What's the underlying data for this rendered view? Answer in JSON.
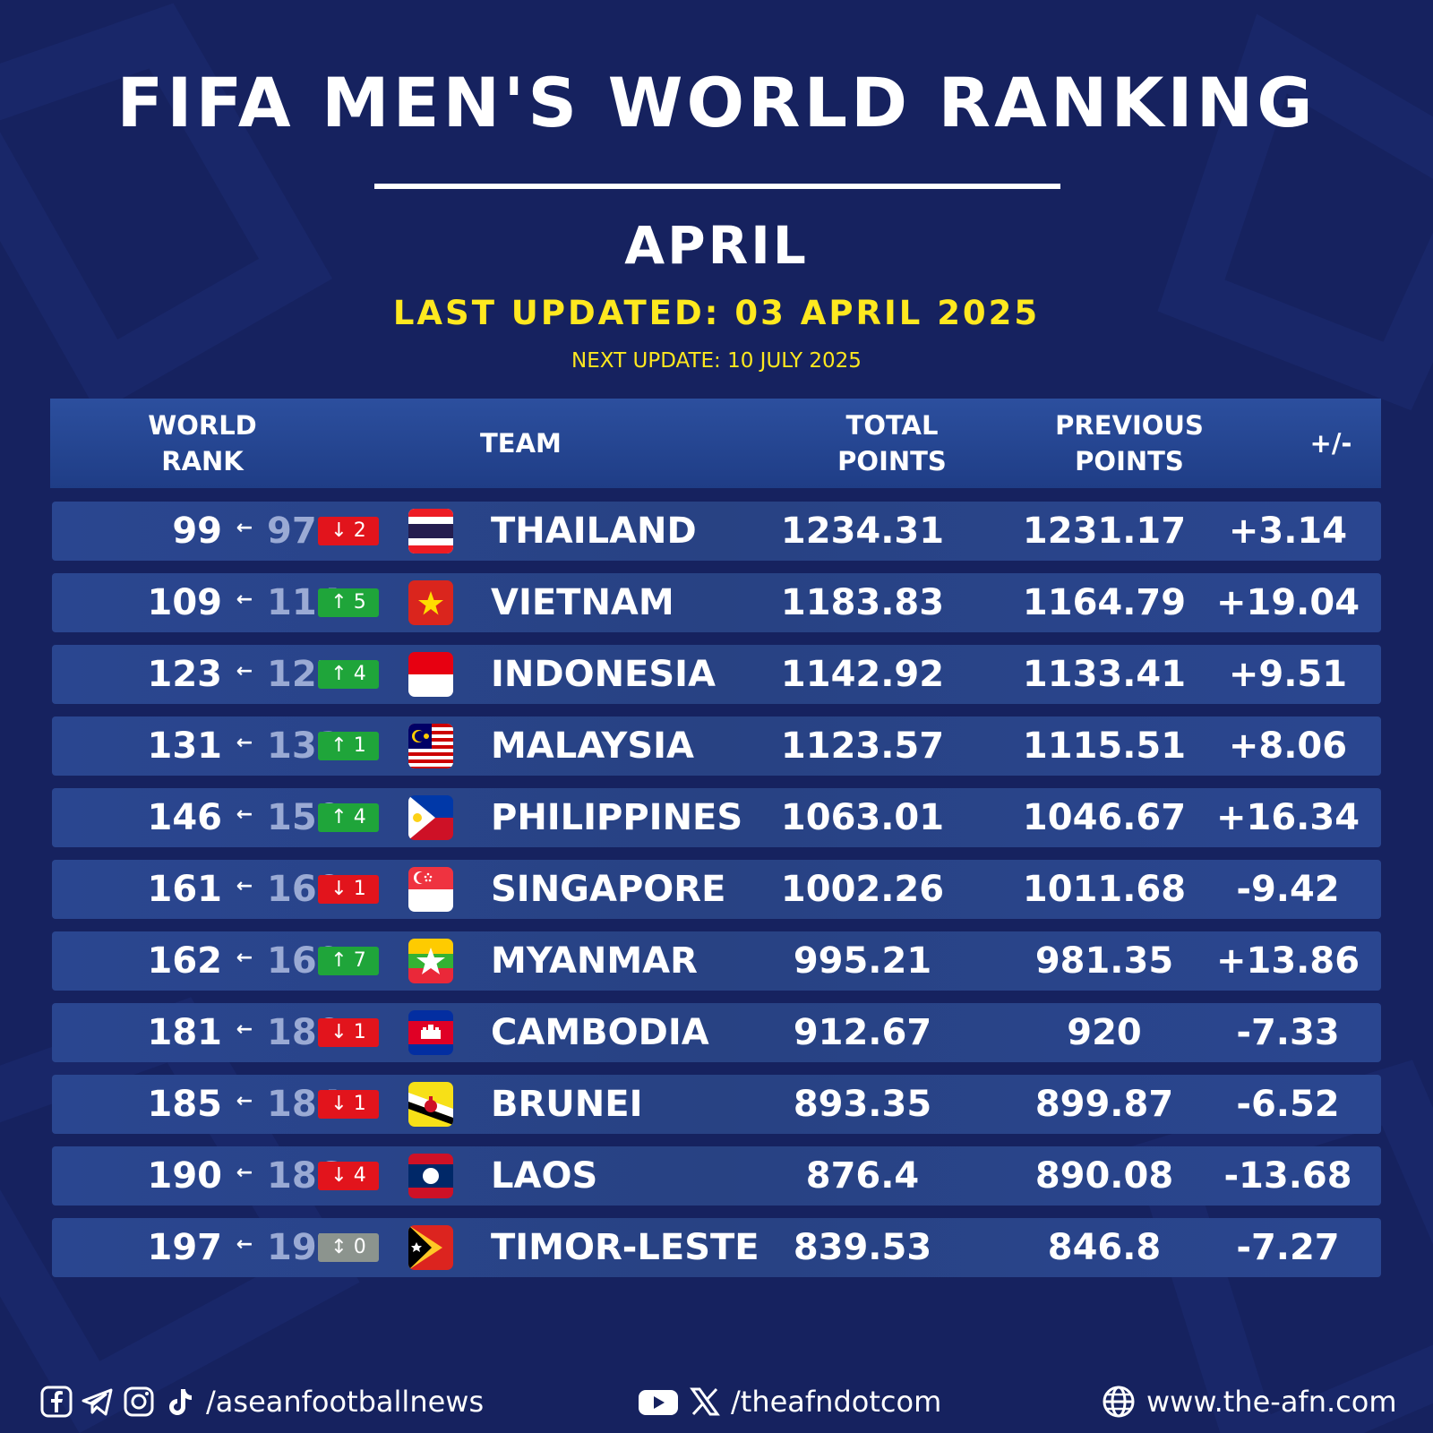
{
  "header": {
    "title": "FIFA MEN'S WORLD RANKING",
    "month": "APRIL",
    "last_updated": "LAST UPDATED: 03 APRIL 2025",
    "next_update": "NEXT UPDATE: 10 JULY 2025"
  },
  "table": {
    "columns": {
      "rank_line1": "WORLD",
      "rank_line2": "RANK",
      "team": "TEAM",
      "total_line1": "TOTAL",
      "total_line2": "POINTS",
      "prev_line1": "PREVIOUS",
      "prev_line2": "POINTS",
      "diff": "+/-"
    },
    "rows": [
      {
        "rank": "99",
        "prev_rank": "97",
        "move": "↓ 2",
        "move_dir": "down",
        "flag": "thailand-flag-icon",
        "team": "THAILAND",
        "total": "1234.31",
        "previous": "1231.17",
        "diff": "+3.14"
      },
      {
        "rank": "109",
        "prev_rank": "114",
        "move": "↑ 5",
        "move_dir": "up",
        "flag": "vietnam-flag-icon",
        "team": "VIETNAM",
        "total": "1183.83",
        "previous": "1164.79",
        "diff": "+19.04"
      },
      {
        "rank": "123",
        "prev_rank": "127",
        "move": "↑ 4",
        "move_dir": "up",
        "flag": "indonesia-flag-icon",
        "team": "INDONESIA",
        "total": "1142.92",
        "previous": "1133.41",
        "diff": "+9.51"
      },
      {
        "rank": "131",
        "prev_rank": "132",
        "move": "↑ 1",
        "move_dir": "up",
        "flag": "malaysia-flag-icon",
        "team": "MALAYSIA",
        "total": "1123.57",
        "previous": "1115.51",
        "diff": "+8.06"
      },
      {
        "rank": "146",
        "prev_rank": "150",
        "move": "↑ 4",
        "move_dir": "up",
        "flag": "philippines-flag-icon",
        "team": "PHILIPPINES",
        "total": "1063.01",
        "previous": "1046.67",
        "diff": "+16.34"
      },
      {
        "rank": "161",
        "prev_rank": "160",
        "move": "↓ 1",
        "move_dir": "down",
        "flag": "singapore-flag-icon",
        "team": "SINGAPORE",
        "total": "1002.26",
        "previous": "1011.68",
        "diff": "-9.42"
      },
      {
        "rank": "162",
        "prev_rank": "169",
        "move": "↑ 7",
        "move_dir": "up",
        "flag": "myanmar-flag-icon",
        "team": "MYANMAR",
        "total": "995.21",
        "previous": "981.35",
        "diff": "+13.86"
      },
      {
        "rank": "181",
        "prev_rank": "180",
        "move": "↓ 1",
        "move_dir": "down",
        "flag": "cambodia-flag-icon",
        "team": "CAMBODIA",
        "total": "912.67",
        "previous": "920",
        "diff": "-7.33"
      },
      {
        "rank": "185",
        "prev_rank": "184",
        "move": "↓ 1",
        "move_dir": "down",
        "flag": "brunei-flag-icon",
        "team": "BRUNEI",
        "total": "893.35",
        "previous": "899.87",
        "diff": "-6.52"
      },
      {
        "rank": "190",
        "prev_rank": "186",
        "move": "↓ 4",
        "move_dir": "down",
        "flag": "laos-flag-icon",
        "team": "LAOS",
        "total": "876.4",
        "previous": "890.08",
        "diff": "-13.68"
      },
      {
        "rank": "197",
        "prev_rank": "197",
        "move": "↕ 0",
        "move_dir": "same",
        "flag": "timor-leste-flag-icon",
        "team": "TIMOR-LESTE",
        "total": "839.53",
        "previous": "846.8",
        "diff": "-7.27"
      }
    ]
  },
  "footer": {
    "social_handle": "/aseanfootballnews",
    "video_handle": "/theafndotcom",
    "website": "www.the-afn.com"
  },
  "colors": {
    "background": "#16225f",
    "header_bar": "#2c4f9e",
    "row_bg": "#284283",
    "accent_yellow": "#ffe81f",
    "down": "#e2141c",
    "up": "#1fa53a",
    "same": "#8c948e"
  }
}
